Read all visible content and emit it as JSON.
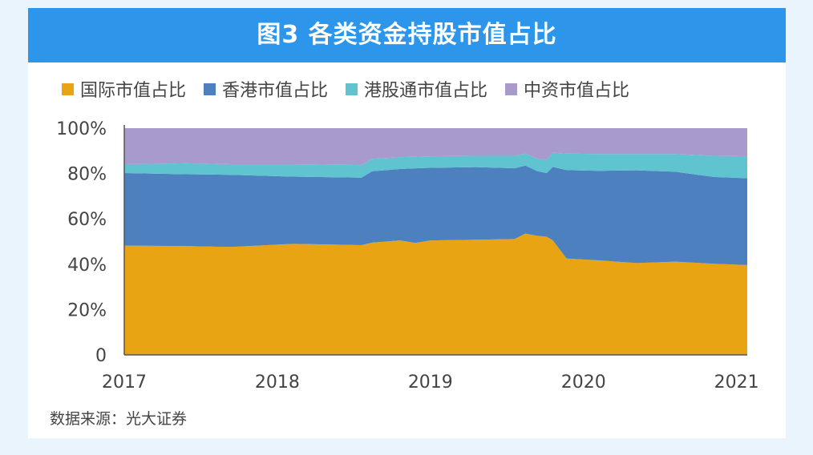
{
  "title": "图3  各类资金持股市值占比",
  "source": "数据来源：光大证券",
  "chart_data": {
    "type": "area",
    "stacked": true,
    "title": "图3  各类资金持股市值占比",
    "xlabel": "",
    "ylabel": "",
    "xlim": [
      2017,
      2021.07
    ],
    "ylim": [
      0,
      100
    ],
    "x_ticks": [
      "2017",
      "2018",
      "2019",
      "2020",
      "2021"
    ],
    "y_ticks": [
      "0",
      "20%",
      "40%",
      "60%",
      "80%",
      "100%"
    ],
    "grid": false,
    "legend": "top",
    "x": [
      2017.0,
      2017.4,
      2017.7,
      2018.1,
      2018.55,
      2018.62,
      2018.8,
      2018.9,
      2019.0,
      2019.3,
      2019.55,
      2019.62,
      2019.7,
      2019.76,
      2019.8,
      2019.89,
      2020.1,
      2020.35,
      2020.6,
      2020.85,
      2021.07
    ],
    "series": [
      {
        "name": "国际市值占比",
        "color": "#e8a412",
        "values": [
          48.2,
          48.0,
          47.6,
          49.0,
          48.4,
          49.5,
          50.5,
          49.4,
          50.5,
          50.8,
          51.1,
          53.5,
          52.5,
          52.1,
          50.5,
          42.5,
          41.7,
          40.5,
          41.1,
          40.2,
          39.6
        ]
      },
      {
        "name": "香港市值占比",
        "color": "#4c80bf",
        "values": [
          32.0,
          31.7,
          31.8,
          29.6,
          29.8,
          31.5,
          31.5,
          32.9,
          32.0,
          32.0,
          31.2,
          30.0,
          28.5,
          28.1,
          32.4,
          39.0,
          39.5,
          40.9,
          39.7,
          38.3,
          38.3
        ]
      },
      {
        "name": "港股通市值占比",
        "color": "#5fc3d0",
        "values": [
          3.9,
          4.8,
          4.7,
          5.5,
          5.5,
          5.5,
          5.2,
          5.1,
          5.1,
          5.0,
          5.5,
          5.3,
          5.5,
          5.9,
          6.3,
          7.3,
          7.4,
          7.2,
          7.8,
          9.3,
          9.7
        ]
      },
      {
        "name": "中资市值占比",
        "color": "#a99acc",
        "values": [
          15.9,
          15.5,
          15.9,
          15.9,
          16.3,
          13.5,
          12.8,
          12.6,
          12.4,
          12.2,
          12.2,
          11.2,
          13.5,
          13.9,
          10.8,
          11.2,
          11.4,
          11.4,
          11.4,
          12.2,
          12.4
        ]
      }
    ]
  }
}
